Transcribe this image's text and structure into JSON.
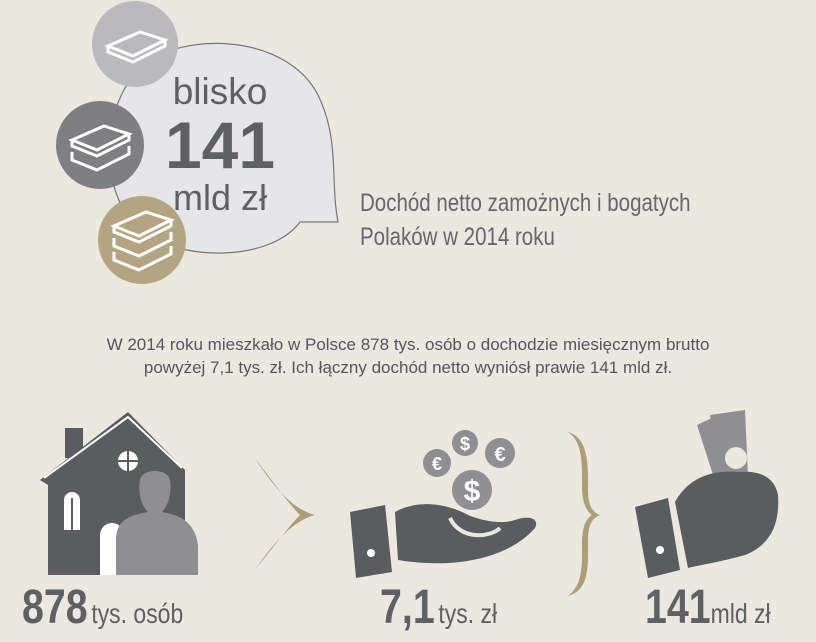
{
  "bubble": {
    "prefix": "blisko",
    "value": "141",
    "unit": "mld zł"
  },
  "title": {
    "line1": "Dochód netto zamożnych i bogatych",
    "line2": "Polaków w 2014 roku"
  },
  "paragraph": {
    "line1": "W 2014 roku mieszkało w Polsce 878 tys. osób o dochodzie miesięcznym brutto",
    "line2": "powyżej 7,1 tys. zł. Ich łączny dochód netto wyniósł prawie 141 mld zł."
  },
  "stats": [
    {
      "value": "878",
      "unit": "tys. osób",
      "icon": "house-person-icon"
    },
    {
      "value": "7,1",
      "unit": "tys. zł",
      "icon": "hand-coins-icon"
    },
    {
      "value": "141",
      "unit": "mld zł",
      "icon": "fist-money-icon"
    }
  ],
  "colors": {
    "background": "#ebe8df",
    "dark_gray": "#5b5c60",
    "mid_gray": "#7e7e83",
    "light_gray": "#b9b9be",
    "gold": "#ad9e78"
  }
}
